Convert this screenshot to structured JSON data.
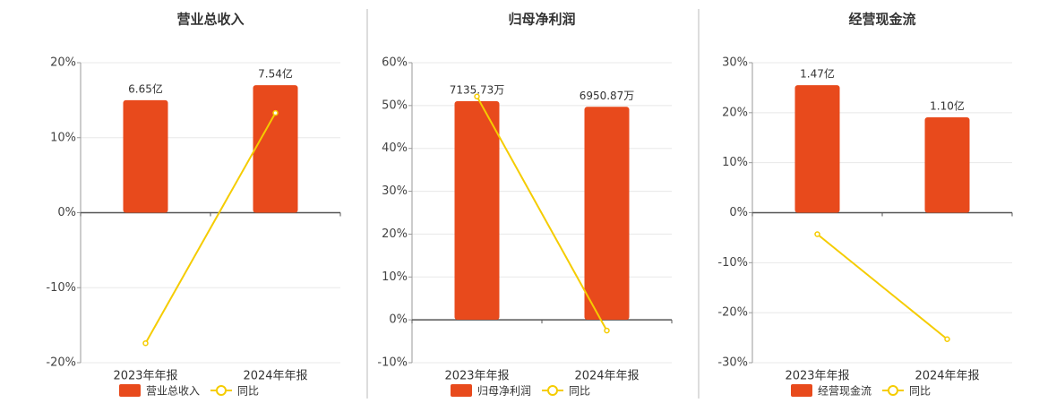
{
  "chart_data": [
    {
      "type": "bar-line",
      "title": "营业总收入",
      "categories": [
        "2023年年报",
        "2024年年报"
      ],
      "series": [
        {
          "name": "营业总收入",
          "color": "#e84a1c",
          "values": [
            6.65,
            7.54
          ],
          "value_labels": [
            "6.65亿",
            "7.54亿"
          ],
          "axis": "y2"
        },
        {
          "name": "同比",
          "color": "#f5cc00",
          "values": [
            -17.4,
            13.3
          ]
        }
      ],
      "ylim": [
        -20,
        20
      ],
      "yticks": [
        {
          "value": -20,
          "label": "-20%"
        },
        {
          "value": -10,
          "label": "-10%"
        },
        {
          "value": 0,
          "label": "0%"
        },
        {
          "value": 10,
          "label": "10%"
        },
        {
          "value": 20,
          "label": "20%"
        }
      ],
      "y2lim": [
        -8.87,
        8.87
      ],
      "grid": true
    },
    {
      "type": "bar-line",
      "title": "归母净利润",
      "categories": [
        "2023年年报",
        "2024年年报"
      ],
      "series": [
        {
          "name": "归母净利润",
          "color": "#e84a1c",
          "values": [
            7135.73,
            6950.87
          ],
          "value_labels": [
            "7135.73万",
            "6950.87万"
          ],
          "axis": "y2"
        },
        {
          "name": "同比",
          "color": "#f5cc00",
          "values": [
            52.1,
            -2.5
          ]
        }
      ],
      "ylim": [
        -10,
        60
      ],
      "yticks": [
        {
          "value": -10,
          "label": "-10%"
        },
        {
          "value": 0,
          "label": "0%"
        },
        {
          "value": 10,
          "label": "10%"
        },
        {
          "value": 20,
          "label": "20%"
        },
        {
          "value": 30,
          "label": "30%"
        },
        {
          "value": 40,
          "label": "40%"
        },
        {
          "value": 50,
          "label": "50%"
        },
        {
          "value": 60,
          "label": "60%"
        }
      ],
      "y2lim": [
        -1404,
        8393
      ],
      "grid": true
    },
    {
      "type": "bar-line",
      "title": "经营现金流",
      "categories": [
        "2023年年报",
        "2024年年报"
      ],
      "series": [
        {
          "name": "经营现金流",
          "color": "#e84a1c",
          "values": [
            1.47,
            1.1
          ],
          "value_labels": [
            "1.47亿",
            "1.10亿"
          ],
          "axis": "y2"
        },
        {
          "name": "同比",
          "color": "#f5cc00",
          "values": [
            -4.3,
            -25.3
          ]
        }
      ],
      "ylim": [
        -30,
        30
      ],
      "yticks": [
        {
          "value": -30,
          "label": "-30%"
        },
        {
          "value": -20,
          "label": "-20%"
        },
        {
          "value": -10,
          "label": "-10%"
        },
        {
          "value": 0,
          "label": "0%"
        },
        {
          "value": 10,
          "label": "10%"
        },
        {
          "value": 20,
          "label": "20%"
        },
        {
          "value": 30,
          "label": "30%"
        }
      ],
      "y2lim": [
        -1.73,
        1.73
      ],
      "grid": true
    }
  ]
}
